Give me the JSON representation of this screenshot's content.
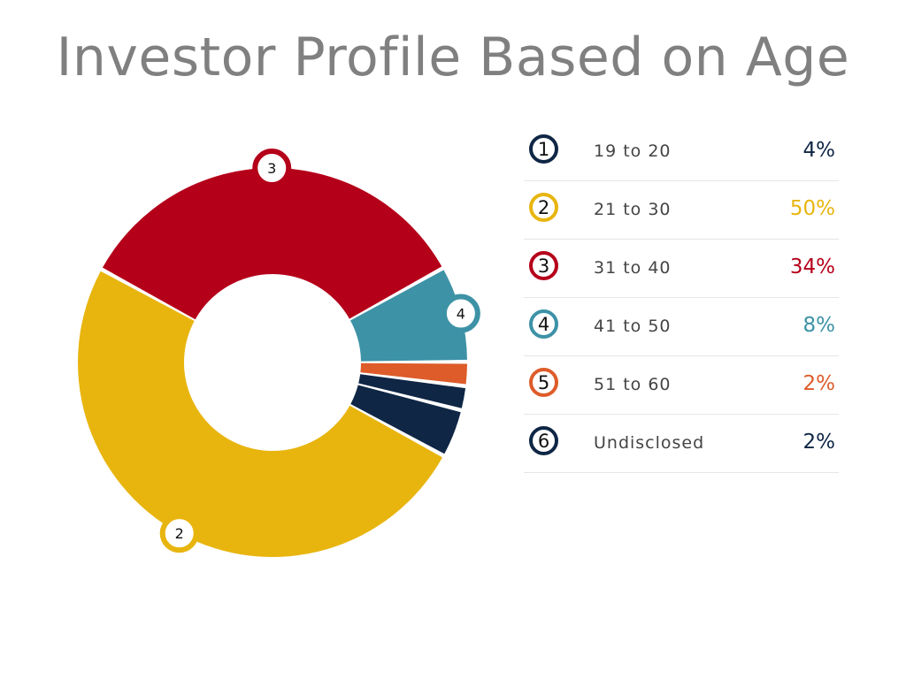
{
  "chart_data": {
    "type": "pie",
    "title": "Investor Profile Based on Age",
    "slices": [
      {
        "number": "1",
        "label": "19 to 20",
        "percent_label": "4%",
        "value": 4,
        "color": "#0f2645"
      },
      {
        "number": "2",
        "label": "21 to 30",
        "percent_label": "50%",
        "value": 50,
        "color": "#e8b50f"
      },
      {
        "number": "3",
        "label": "31 to 40",
        "percent_label": "34%",
        "value": 34,
        "color": "#b5001a"
      },
      {
        "number": "4",
        "label": "41 to 50",
        "percent_label": "8%",
        "value": 8,
        "color": "#3d92a6"
      },
      {
        "number": "5",
        "label": "51 to 60",
        "percent_label": "2%",
        "value": 2,
        "color": "#dd5c2a"
      },
      {
        "number": "6",
        "label": "Undisclosed",
        "percent_label": "2%",
        "value": 2,
        "color": "#0f2645"
      }
    ],
    "callouts": [
      "2",
      "3",
      "4"
    ]
  }
}
